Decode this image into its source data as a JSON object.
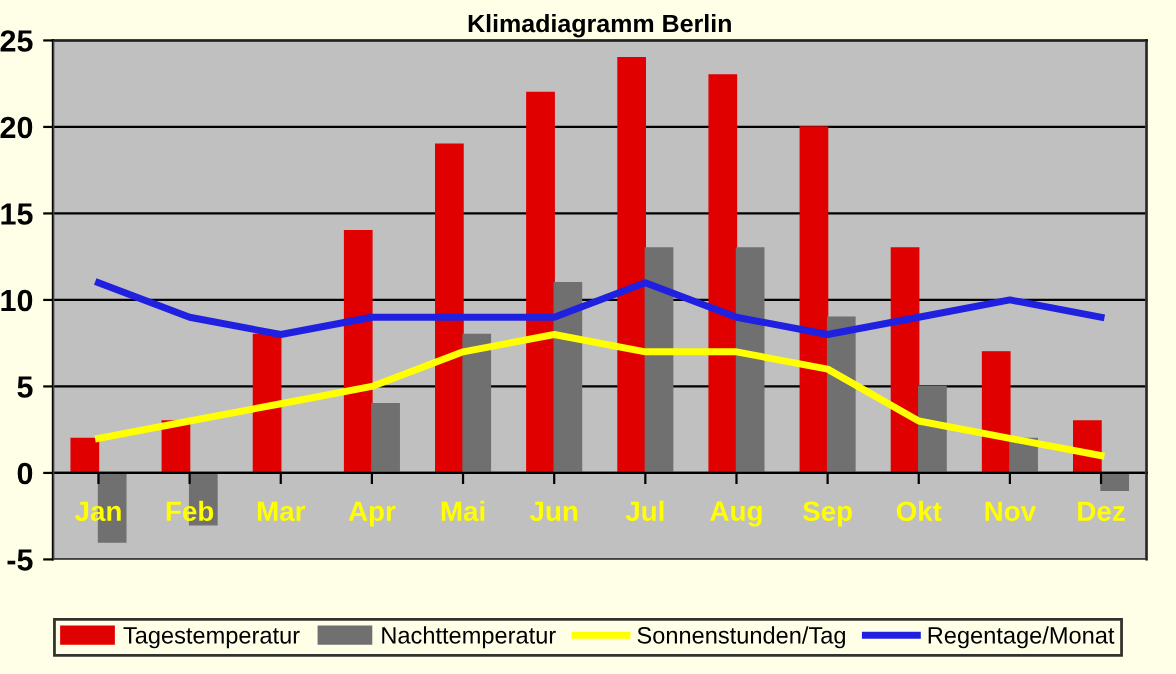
{
  "chart_data": {
    "type": "bar",
    "title": "Klimadiagramm Berlin",
    "categories": [
      "Jan",
      "Feb",
      "Mar",
      "Apr",
      "Mai",
      "Jun",
      "Jul",
      "Aug",
      "Sep",
      "Okt",
      "Nov",
      "Dez"
    ],
    "series": [
      {
        "name": "Tagestemperatur",
        "color": "#e00000",
        "values": [
          2,
          3,
          8,
          14,
          19,
          22,
          24,
          23,
          20,
          13,
          7,
          3
        ]
      },
      {
        "name": "Nachttemperatur",
        "color": "#707070",
        "values": [
          -4,
          -3,
          0,
          4,
          8,
          11,
          13,
          13,
          9,
          5,
          2,
          -1
        ]
      },
      {
        "name": "Sonnenstunden/Tag",
        "type": "line",
        "color": "#ffff00",
        "values": [
          2,
          3,
          4,
          5,
          7,
          8,
          7,
          7,
          6,
          3,
          2,
          1
        ]
      },
      {
        "name": "Regentage/Monat",
        "type": "line",
        "color": "#2020e0",
        "values": [
          11,
          9,
          8,
          9,
          9,
          9,
          11,
          9,
          8,
          9,
          10,
          9
        ]
      }
    ],
    "ylim": [
      -5,
      25
    ],
    "yticks": [
      -5,
      0,
      5,
      10,
      15,
      20,
      25
    ],
    "grid": "y",
    "legend": "bottom"
  }
}
